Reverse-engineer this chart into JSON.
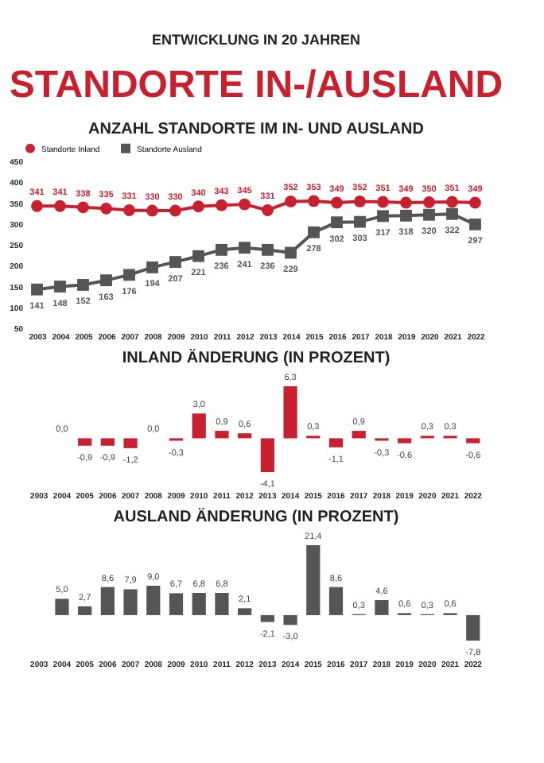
{
  "chart_data": [
    {
      "type": "line",
      "title": "ANZAHL STANDORTE IM IN- UND AUSLAND",
      "annotations": [
        "ENTWICKLUNG IN 20 JAHREN",
        "STANDORTE IN-/AUSLAND"
      ],
      "categories": [
        "2003",
        "2004",
        "2005",
        "2006",
        "2007",
        "2008",
        "2009",
        "2010",
        "2011",
        "2012",
        "2013",
        "2014",
        "2015",
        "2016",
        "2017",
        "2018",
        "2019",
        "2020",
        "2021",
        "2022"
      ],
      "series": [
        {
          "name": "Standorte Inland",
          "color": "#c8202f",
          "marker": "circle",
          "values": [
            341,
            341,
            338,
            335,
            331,
            330,
            330,
            340,
            343,
            345,
            331,
            352,
            353,
            349,
            352,
            351,
            349,
            350,
            351,
            349
          ]
        },
        {
          "name": "Standorte Ausland",
          "color": "#555555",
          "marker": "square",
          "values": [
            141,
            148,
            152,
            163,
            176,
            194,
            207,
            221,
            236,
            241,
            236,
            229,
            278,
            302,
            303,
            317,
            318,
            320,
            322,
            297
          ]
        }
      ],
      "ylim": [
        50,
        450
      ],
      "yticks": [
        50,
        100,
        150,
        200,
        250,
        300,
        350,
        400,
        450
      ],
      "grid": false,
      "legend": "top",
      "data_labels": true
    },
    {
      "type": "bar",
      "title": "INLAND ÄNDERUNG (IN PROZENT)",
      "tick_labels": "x",
      "categories": [
        "2003",
        "2004",
        "2005",
        "2006",
        "2007",
        "2008",
        "2009",
        "2010",
        "2011",
        "2012",
        "2013",
        "2014",
        "2015",
        "2016",
        "2017",
        "2018",
        "2019",
        "2020",
        "2021",
        "2022"
      ],
      "values": [
        null,
        0.0,
        -0.9,
        -0.9,
        -1.2,
        0.0,
        -0.3,
        3.0,
        0.9,
        0.6,
        -4.1,
        6.3,
        0.3,
        -1.1,
        0.9,
        -0.3,
        -0.6,
        0.3,
        0.3,
        -0.6
      ],
      "value_labels": [
        null,
        "0,0",
        "-0,9",
        "-0,9",
        "-1,2",
        "0,0",
        "-0,3",
        "3,0",
        "0,9",
        "0,6",
        "-4,1",
        "6,3",
        "0,3",
        "-1,1",
        "0,9",
        "-0,3",
        "-0,6",
        "0,3",
        "0,3",
        "-0,6"
      ],
      "color": "#c8202f"
    },
    {
      "type": "bar",
      "title": "AUSLAND ÄNDERUNG (IN PROZENT)",
      "tick_labels": "x",
      "categories": [
        "2003",
        "2004",
        "2005",
        "2006",
        "2007",
        "2008",
        "2009",
        "2010",
        "2011",
        "2012",
        "2013",
        "2014",
        "2015",
        "2016",
        "2017",
        "2018",
        "2019",
        "2020",
        "2021",
        "2022"
      ],
      "values": [
        null,
        5.0,
        2.7,
        8.6,
        7.9,
        9.0,
        6.7,
        6.8,
        6.8,
        2.1,
        -2.1,
        -3.0,
        21.4,
        8.6,
        0.3,
        4.6,
        0.6,
        0.3,
        0.6,
        -7.8
      ],
      "value_labels": [
        null,
        "5,0",
        "2,7",
        "8,6",
        "7,9",
        "9,0",
        "6,7",
        "6,8",
        "6,8",
        "2,1",
        "-2,1",
        "-3,0",
        "21,4",
        "8,6",
        "0,3",
        "4,6",
        "0,6",
        "0,3",
        "0,6",
        "-7,8"
      ],
      "color": "#555555"
    }
  ]
}
